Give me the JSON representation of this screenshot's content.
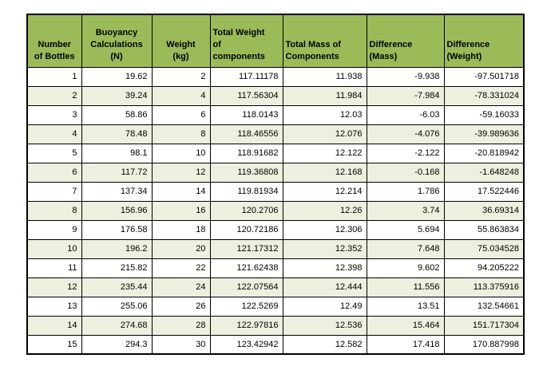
{
  "colors": {
    "header_bg": "#9bbb59",
    "row_bg": "#ffffff",
    "row_alt_bg": "#ebf1de",
    "border": "#000000",
    "text": "#000000"
  },
  "header": {
    "labels": [
      "Number\nof Bottles",
      "Buoyancy\nCalculations\n(N)",
      "Weight\n(kg)",
      "Total Weight\nof\ncomponents",
      "Total Mass of\nComponents",
      "Difference\n(Mass)",
      "Difference\n(Weight)"
    ]
  },
  "chart_data": {
    "type": "table",
    "columns": [
      "Number of Bottles",
      "Buoyancy Calculations (N)",
      "Weight (kg)",
      "Total Weight of components",
      "Total Mass of Components",
      "Difference (Mass)",
      "Difference (Weight)"
    ],
    "rows": [
      [
        1,
        19.62,
        2,
        117.11178,
        11.938,
        -9.938,
        -97.501718
      ],
      [
        2,
        39.24,
        4,
        117.56304,
        11.984,
        -7.984,
        -78.331024
      ],
      [
        3,
        58.86,
        6,
        118.0143,
        12.03,
        -6.03,
        -59.16033
      ],
      [
        4,
        78.48,
        8,
        118.46556,
        12.076,
        -4.076,
        -39.989636
      ],
      [
        5,
        98.1,
        10,
        118.91682,
        12.122,
        -2.122,
        -20.818942
      ],
      [
        6,
        117.72,
        12,
        119.36808,
        12.168,
        -0.168,
        -1.648248
      ],
      [
        7,
        137.34,
        14,
        119.81934,
        12.214,
        1.786,
        17.522446
      ],
      [
        8,
        156.96,
        16,
        120.2706,
        12.26,
        3.74,
        36.69314
      ],
      [
        9,
        176.58,
        18,
        120.72186,
        12.306,
        5.694,
        55.863834
      ],
      [
        10,
        196.2,
        20,
        121.17312,
        12.352,
        7.648,
        75.034528
      ],
      [
        11,
        215.82,
        22,
        121.62438,
        12.398,
        9.602,
        94.205222
      ],
      [
        12,
        235.44,
        24,
        122.07564,
        12.444,
        11.556,
        113.375916
      ],
      [
        13,
        255.06,
        26,
        122.5269,
        12.49,
        13.51,
        132.54661
      ],
      [
        14,
        274.68,
        28,
        122.97816,
        12.536,
        15.464,
        151.717304
      ],
      [
        15,
        294.3,
        30,
        123.42942,
        12.582,
        17.418,
        170.887998
      ]
    ]
  }
}
